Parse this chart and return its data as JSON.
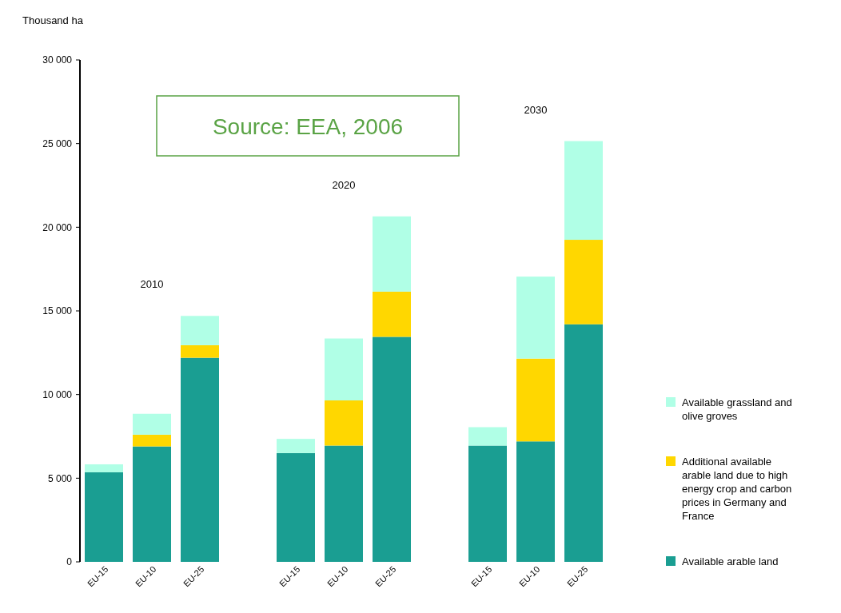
{
  "chart_data": {
    "type": "bar",
    "stacked": true,
    "ylabel": "Thousand ha",
    "categories": [
      "EU-15",
      "EU-10",
      "EU-25",
      "EU-15",
      "EU-10",
      "EU-25",
      "EU-15",
      "EU-10",
      "EU-25"
    ],
    "series": [
      {
        "name": "Available arable land",
        "color": "#1a9e92",
        "values": [
          5350,
          6900,
          12200,
          6500,
          6950,
          13450,
          6950,
          7200,
          14200
        ]
      },
      {
        "name": "Additional available arable land due to high energy crop and carbon prices in Germany and France",
        "color": "#ffd700",
        "values": [
          0,
          700,
          750,
          0,
          2700,
          2700,
          0,
          4950,
          5050
        ]
      },
      {
        "name": "Available grassland and olive groves",
        "color": "#b0ffe6",
        "values": [
          480,
          1250,
          1750,
          850,
          3700,
          4500,
          1100,
          4900,
          5900
        ]
      }
    ],
    "ylim": [
      0,
      30000
    ],
    "yticks": [
      {
        "value": 0,
        "label": "0"
      },
      {
        "value": 5000,
        "label": "5 000"
      },
      {
        "value": 10000,
        "label": "10 000"
      },
      {
        "value": 15000,
        "label": "15 000"
      },
      {
        "value": 20000,
        "label": "20 000"
      },
      {
        "value": 25000,
        "label": "25 000"
      },
      {
        "value": 30000,
        "label": "30 000"
      }
    ],
    "annotations": [
      "2010",
      "2020",
      "2030",
      "Source: EEA, 2006"
    ],
    "legend": "right",
    "grid": false
  }
}
